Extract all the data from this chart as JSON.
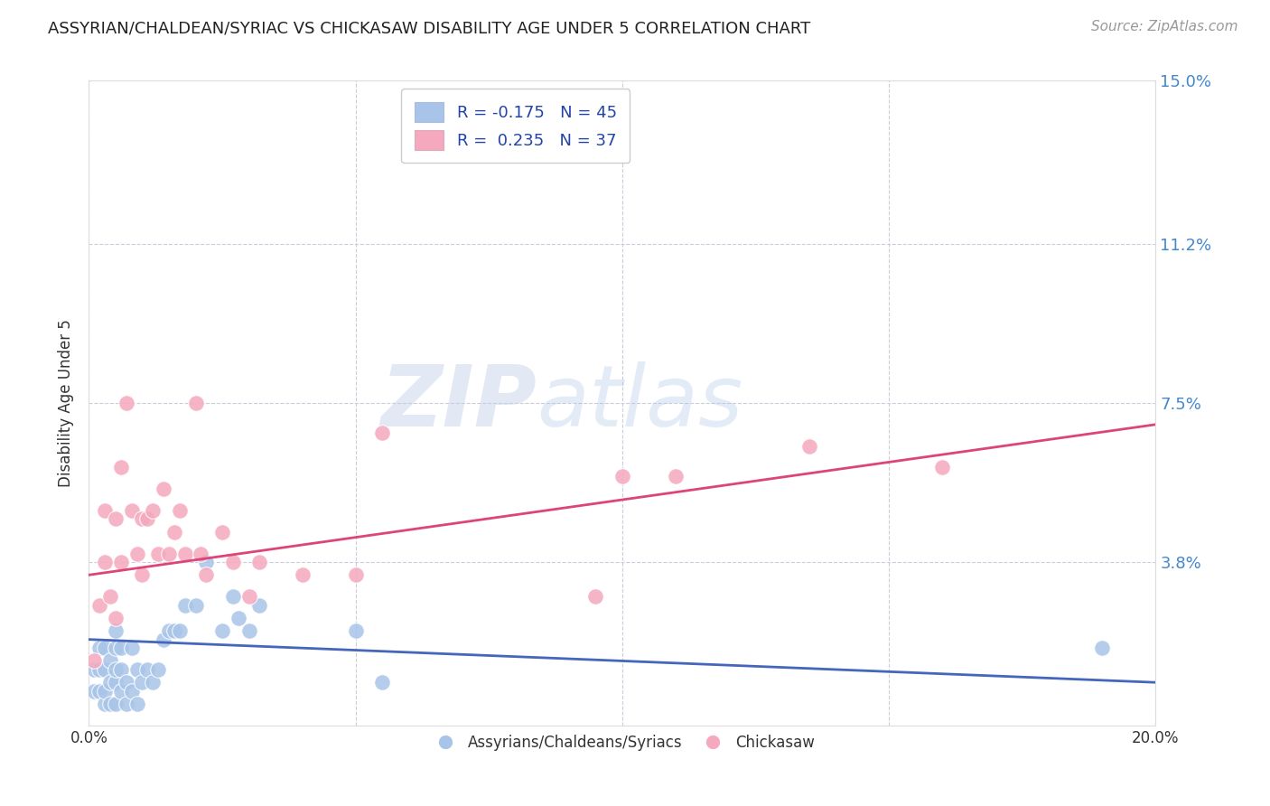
{
  "title": "ASSYRIAN/CHALDEAN/SYRIAC VS CHICKASAW DISABILITY AGE UNDER 5 CORRELATION CHART",
  "source": "Source: ZipAtlas.com",
  "ylabel": "Disability Age Under 5",
  "xmin": 0.0,
  "xmax": 0.2,
  "ymin": 0.0,
  "ymax": 0.15,
  "yticks": [
    0.0,
    0.038,
    0.075,
    0.112,
    0.15
  ],
  "ytick_labels": [
    "",
    "3.8%",
    "7.5%",
    "11.2%",
    "15.0%"
  ],
  "xticks": [
    0.0,
    0.05,
    0.1,
    0.15,
    0.2
  ],
  "xtick_labels": [
    "0.0%",
    "",
    "",
    "",
    "20.0%"
  ],
  "color_blue": "#a8c4e8",
  "color_pink": "#f5a8be",
  "trendline_blue": "#4466bb",
  "trendline_pink": "#dd4477",
  "background_color": "#ffffff",
  "grid_color": "#ccccdd",
  "watermark_zip": "ZIP",
  "watermark_atlas": "atlas",
  "blue_points_x": [
    0.001,
    0.001,
    0.002,
    0.002,
    0.002,
    0.003,
    0.003,
    0.003,
    0.003,
    0.004,
    0.004,
    0.004,
    0.005,
    0.005,
    0.005,
    0.005,
    0.005,
    0.006,
    0.006,
    0.006,
    0.007,
    0.007,
    0.008,
    0.008,
    0.009,
    0.009,
    0.01,
    0.011,
    0.012,
    0.013,
    0.014,
    0.015,
    0.016,
    0.017,
    0.018,
    0.02,
    0.022,
    0.025,
    0.027,
    0.028,
    0.03,
    0.032,
    0.05,
    0.055,
    0.19
  ],
  "blue_points_y": [
    0.008,
    0.013,
    0.008,
    0.013,
    0.018,
    0.005,
    0.008,
    0.013,
    0.018,
    0.005,
    0.01,
    0.015,
    0.005,
    0.01,
    0.013,
    0.018,
    0.022,
    0.008,
    0.013,
    0.018,
    0.005,
    0.01,
    0.008,
    0.018,
    0.005,
    0.013,
    0.01,
    0.013,
    0.01,
    0.013,
    0.02,
    0.022,
    0.022,
    0.022,
    0.028,
    0.028,
    0.038,
    0.022,
    0.03,
    0.025,
    0.022,
    0.028,
    0.022,
    0.01,
    0.018
  ],
  "pink_points_x": [
    0.001,
    0.002,
    0.003,
    0.003,
    0.004,
    0.005,
    0.005,
    0.006,
    0.006,
    0.007,
    0.008,
    0.009,
    0.01,
    0.01,
    0.011,
    0.012,
    0.013,
    0.014,
    0.015,
    0.016,
    0.017,
    0.018,
    0.02,
    0.021,
    0.022,
    0.025,
    0.027,
    0.03,
    0.032,
    0.04,
    0.05,
    0.055,
    0.095,
    0.1,
    0.11,
    0.135,
    0.16
  ],
  "pink_points_y": [
    0.015,
    0.028,
    0.038,
    0.05,
    0.03,
    0.025,
    0.048,
    0.038,
    0.06,
    0.075,
    0.05,
    0.04,
    0.035,
    0.048,
    0.048,
    0.05,
    0.04,
    0.055,
    0.04,
    0.045,
    0.05,
    0.04,
    0.075,
    0.04,
    0.035,
    0.045,
    0.038,
    0.03,
    0.038,
    0.035,
    0.035,
    0.068,
    0.03,
    0.058,
    0.058,
    0.065,
    0.06
  ],
  "blue_trend_x0": 0.0,
  "blue_trend_y0": 0.02,
  "blue_trend_x1": 0.2,
  "blue_trend_y1": 0.01,
  "pink_trend_x0": 0.0,
  "pink_trend_y0": 0.035,
  "pink_trend_x1": 0.2,
  "pink_trend_y1": 0.07
}
